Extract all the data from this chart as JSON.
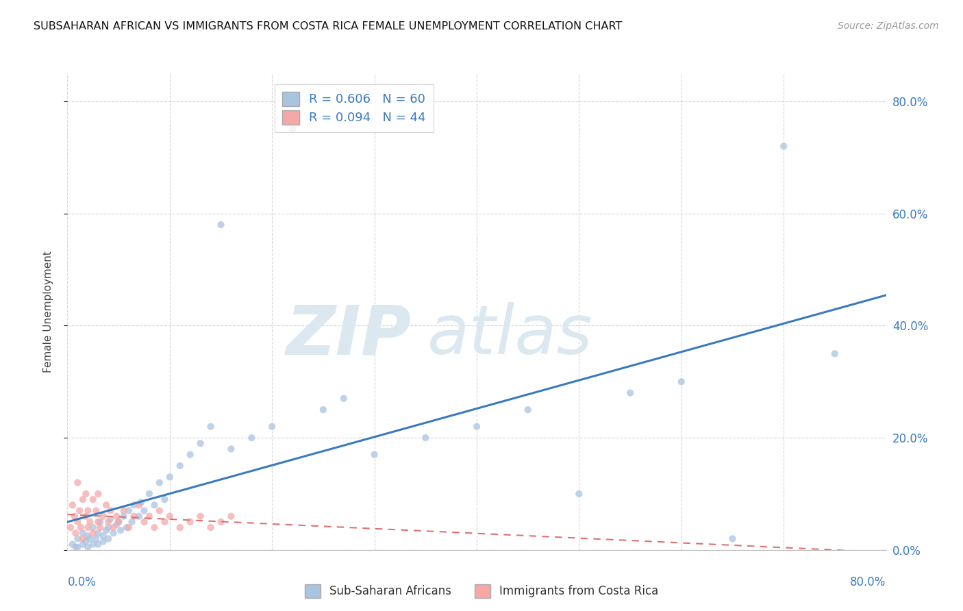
{
  "title": "SUBSAHARAN AFRICAN VS IMMIGRANTS FROM COSTA RICA FEMALE UNEMPLOYMENT CORRELATION CHART",
  "source": "Source: ZipAtlas.com",
  "ylabel": "Female Unemployment",
  "xlim": [
    0.0,
    0.8
  ],
  "ylim": [
    0.0,
    0.85
  ],
  "yticks": [
    0.0,
    0.2,
    0.4,
    0.6,
    0.8
  ],
  "xticks": [
    0.0,
    0.1,
    0.2,
    0.3,
    0.4,
    0.5,
    0.6,
    0.7,
    0.8
  ],
  "R_blue": 0.606,
  "N_blue": 60,
  "R_pink": 0.094,
  "N_pink": 44,
  "blue_color": "#aac4e0",
  "pink_color": "#f4a8a8",
  "blue_line_color": "#3a7abf",
  "pink_line_color": "#e07070",
  "watermark_color": "#dce8f0",
  "legend_entry1": "Sub-Saharan Africans",
  "legend_entry2": "Immigrants from Costa Rica",
  "background_color": "#ffffff",
  "grid_color": "#cccccc",
  "blue_scatter_x": [
    0.005,
    0.008,
    0.01,
    0.01,
    0.015,
    0.015,
    0.018,
    0.02,
    0.02,
    0.022,
    0.025,
    0.025,
    0.028,
    0.03,
    0.03,
    0.032,
    0.035,
    0.035,
    0.038,
    0.04,
    0.04,
    0.042,
    0.045,
    0.048,
    0.05,
    0.052,
    0.055,
    0.058,
    0.06,
    0.063,
    0.065,
    0.07,
    0.072,
    0.075,
    0.08,
    0.085,
    0.09,
    0.095,
    0.1,
    0.11,
    0.12,
    0.13,
    0.14,
    0.15,
    0.16,
    0.18,
    0.2,
    0.22,
    0.25,
    0.27,
    0.3,
    0.35,
    0.4,
    0.45,
    0.5,
    0.55,
    0.6,
    0.65,
    0.7,
    0.75
  ],
  "blue_scatter_y": [
    0.01,
    0.005,
    0.02,
    0.005,
    0.01,
    0.03,
    0.015,
    0.025,
    0.005,
    0.02,
    0.01,
    0.04,
    0.02,
    0.03,
    0.01,
    0.05,
    0.025,
    0.015,
    0.035,
    0.04,
    0.02,
    0.055,
    0.03,
    0.045,
    0.05,
    0.035,
    0.06,
    0.04,
    0.07,
    0.05,
    0.08,
    0.06,
    0.085,
    0.07,
    0.1,
    0.08,
    0.12,
    0.09,
    0.13,
    0.15,
    0.17,
    0.19,
    0.22,
    0.58,
    0.18,
    0.2,
    0.22,
    0.75,
    0.25,
    0.27,
    0.17,
    0.2,
    0.22,
    0.25,
    0.1,
    0.28,
    0.3,
    0.02,
    0.72,
    0.35
  ],
  "pink_scatter_x": [
    0.003,
    0.005,
    0.007,
    0.008,
    0.01,
    0.01,
    0.012,
    0.013,
    0.015,
    0.015,
    0.018,
    0.018,
    0.02,
    0.02,
    0.022,
    0.025,
    0.025,
    0.028,
    0.03,
    0.03,
    0.032,
    0.035,
    0.038,
    0.04,
    0.042,
    0.045,
    0.048,
    0.05,
    0.055,
    0.06,
    0.065,
    0.07,
    0.075,
    0.08,
    0.085,
    0.09,
    0.095,
    0.1,
    0.11,
    0.12,
    0.13,
    0.14,
    0.15,
    0.16
  ],
  "pink_scatter_y": [
    0.04,
    0.08,
    0.06,
    0.03,
    0.05,
    0.12,
    0.07,
    0.04,
    0.09,
    0.02,
    0.06,
    0.1,
    0.04,
    0.07,
    0.05,
    0.09,
    0.03,
    0.07,
    0.05,
    0.1,
    0.04,
    0.06,
    0.08,
    0.05,
    0.07,
    0.04,
    0.06,
    0.05,
    0.07,
    0.04,
    0.06,
    0.08,
    0.05,
    0.06,
    0.04,
    0.07,
    0.05,
    0.06,
    0.04,
    0.05,
    0.06,
    0.04,
    0.05,
    0.06
  ]
}
